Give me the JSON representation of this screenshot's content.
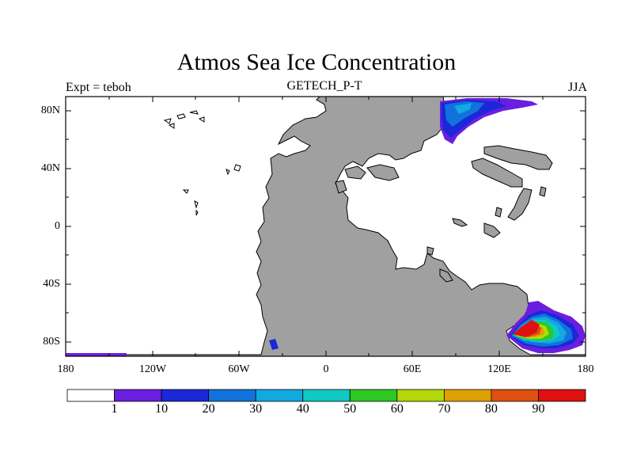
{
  "title": "Atmos Sea Ice Concentration",
  "subtitle_left": "Expt = teboh",
  "subtitle_center": "GETECH_P-T",
  "subtitle_right": "JJA",
  "y_ticks": [
    "80N",
    "40N",
    "0",
    "40S",
    "80S"
  ],
  "x_ticks": [
    "180",
    "120W",
    "60W",
    "0",
    "60E",
    "120E",
    "180"
  ],
  "colorbar": {
    "labels": [
      "1",
      "10",
      "20",
      "30",
      "40",
      "50",
      "60",
      "70",
      "80",
      "90"
    ],
    "colors": [
      "#ffffff",
      "#6a1ee0",
      "#1a28d8",
      "#1272dc",
      "#12a8e0",
      "#10c8c4",
      "#2ec822",
      "#b4d80a",
      "#dca000",
      "#e05010",
      "#e01010"
    ]
  },
  "colors": {
    "land": "#a0a0a0",
    "ocean": "#ffffff",
    "coast": "#000000"
  }
}
